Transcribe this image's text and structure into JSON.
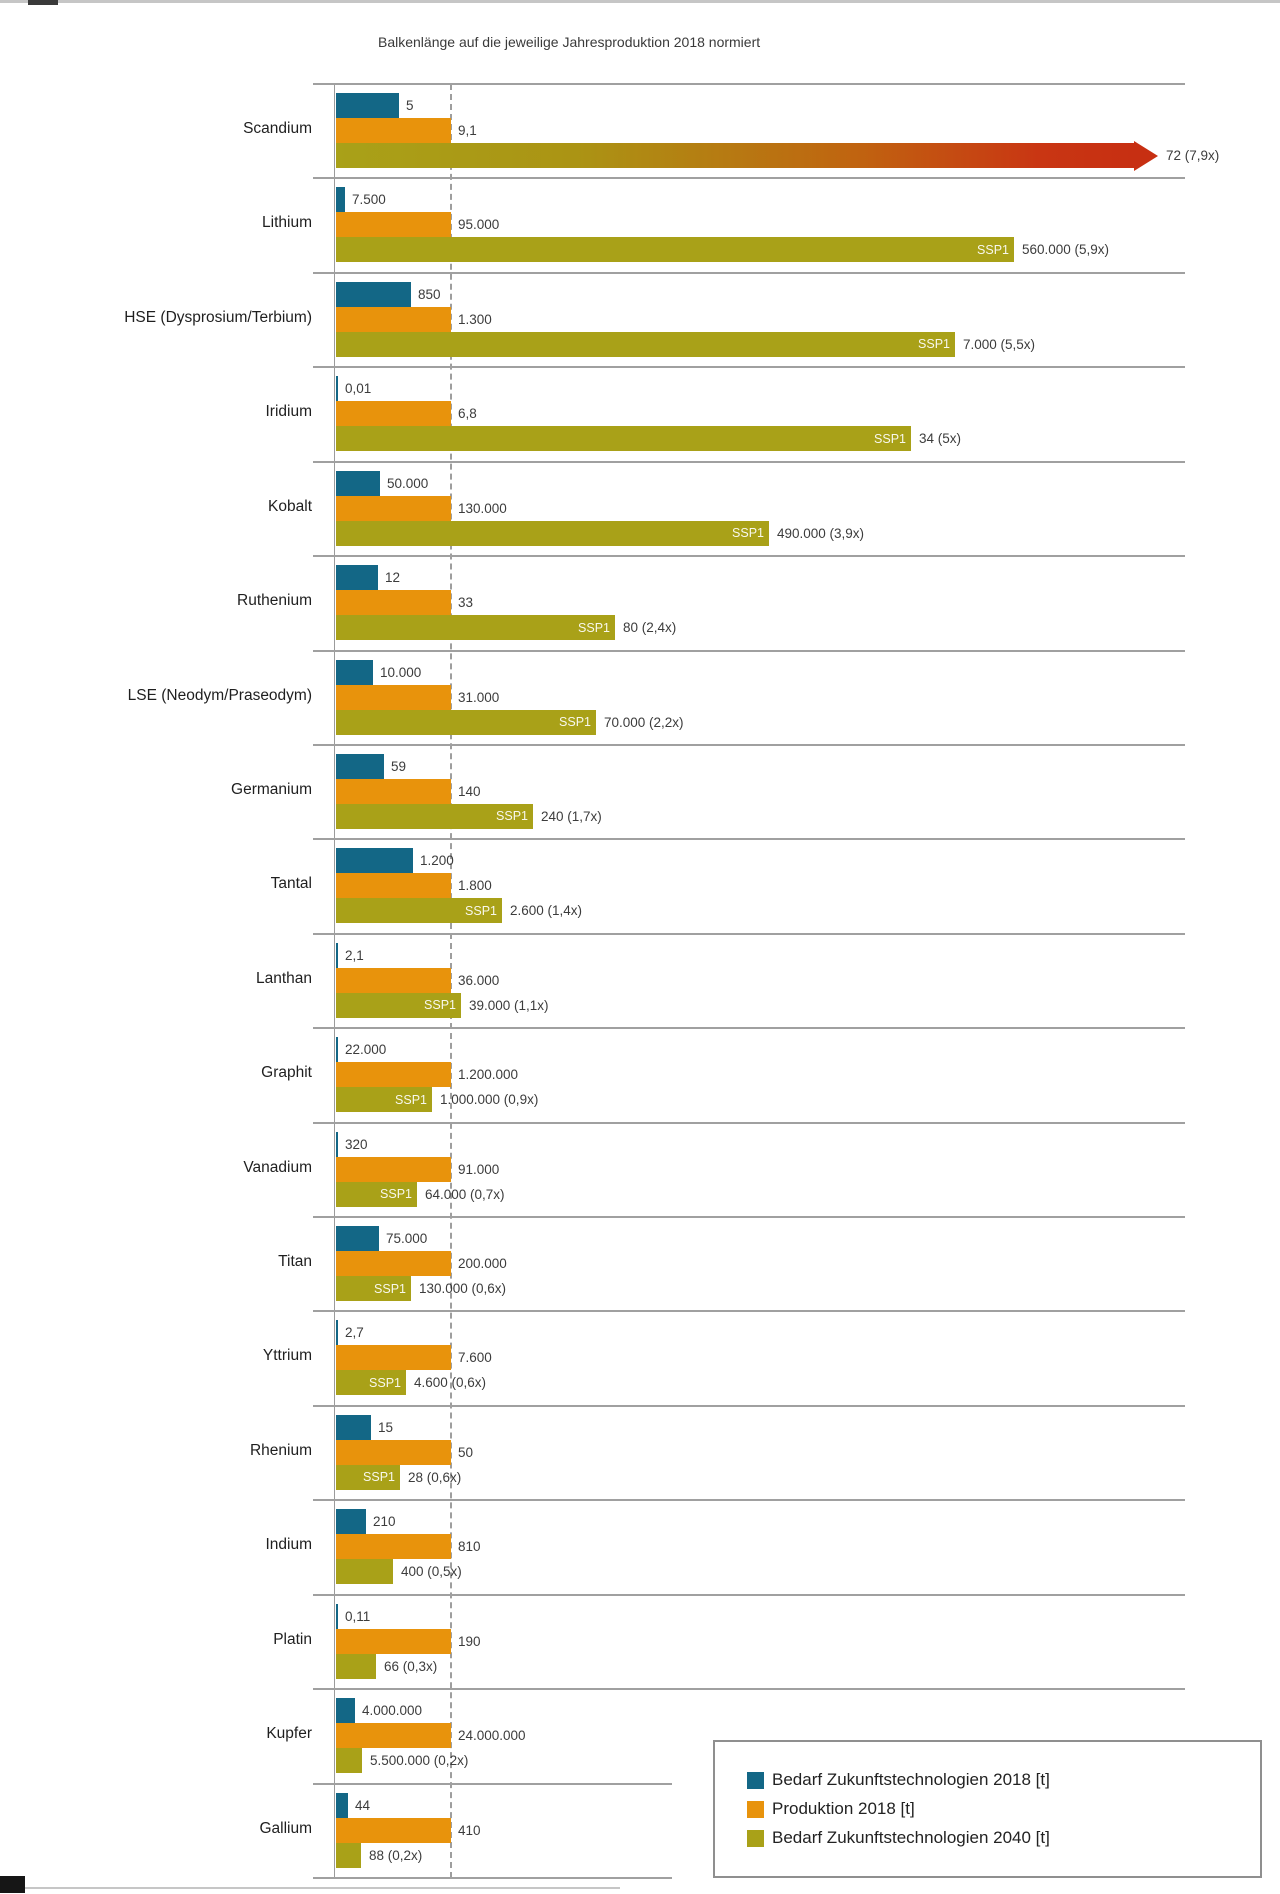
{
  "title": "Balkenlänge auf die jeweilige Jahresproduktion 2018 normiert",
  "legend": {
    "items": [
      {
        "label": "Bedarf Zukunftstechnologien 2018 [t]",
        "color": "#136786"
      },
      {
        "label": "Produktion 2018 [t]",
        "color": "#e8930c"
      },
      {
        "label": "Bedarf Zukunftstechnologien 2040 [t]",
        "color": "#a9a118"
      }
    ]
  },
  "colors": {
    "demand_2018": "#136786",
    "production_2018": "#e8930c",
    "demand_2040": "#a9a118",
    "overflow_red": "#c72f12",
    "grid": "#9b9b9b",
    "text": "#3c3c3c"
  },
  "chart_data": {
    "type": "bar",
    "orientation": "horizontal",
    "title": "Balkenlänge auf die jeweilige Jahresproduktion 2018 normiert",
    "normalized_to": "Produktion 2018 = 1",
    "ssp1_label": "SSP1",
    "series_names": [
      "Bedarf Zukunftstechnologien 2018 [t]",
      "Produktion 2018 [t]",
      "Bedarf Zukunftstechnologien 2040 [t]"
    ],
    "rows": [
      {
        "material": "Scandium",
        "demand_2018": 5,
        "demand_2018_label": "5",
        "production_2018": 9.1,
        "production_2018_label": "9,1",
        "demand_2040": 72,
        "demand_2040_label": "72 (7,9x)",
        "ssp1_tag": false,
        "overflow_arrow": true
      },
      {
        "material": "Lithium",
        "demand_2018": 7500,
        "demand_2018_label": "7.500",
        "production_2018": 95000,
        "production_2018_label": "95.000",
        "demand_2040": 560000,
        "demand_2040_label": "560.000 (5,9x)",
        "ssp1_tag": true,
        "overflow_arrow": false
      },
      {
        "material": "HSE (Dysprosium/Terbium)",
        "demand_2018": 850,
        "demand_2018_label": "850",
        "production_2018": 1300,
        "production_2018_label": "1.300",
        "demand_2040": 7000,
        "demand_2040_label": "7.000 (5,5x)",
        "ssp1_tag": true,
        "overflow_arrow": false
      },
      {
        "material": "Iridium",
        "demand_2018": 0.01,
        "demand_2018_label": "0,01",
        "production_2018": 6.8,
        "production_2018_label": "6,8",
        "demand_2040": 34,
        "demand_2040_label": "34 (5x)",
        "ssp1_tag": true,
        "overflow_arrow": false
      },
      {
        "material": "Kobalt",
        "demand_2018": 50000,
        "demand_2018_label": "50.000",
        "production_2018": 130000,
        "production_2018_label": "130.000",
        "demand_2040": 490000,
        "demand_2040_label": "490.000 (3,9x)",
        "ssp1_tag": true,
        "overflow_arrow": false
      },
      {
        "material": "Ruthenium",
        "demand_2018": 12,
        "demand_2018_label": "12",
        "production_2018": 33,
        "production_2018_label": "33",
        "demand_2040": 80,
        "demand_2040_label": "80 (2,4x)",
        "ssp1_tag": true,
        "overflow_arrow": false
      },
      {
        "material": "LSE (Neodym/Praseodym)",
        "demand_2018": 10000,
        "demand_2018_label": "10.000",
        "production_2018": 31000,
        "production_2018_label": "31.000",
        "demand_2040": 70000,
        "demand_2040_label": "70.000 (2,2x)",
        "ssp1_tag": true,
        "overflow_arrow": false
      },
      {
        "material": "Germanium",
        "demand_2018": 59,
        "demand_2018_label": "59",
        "production_2018": 140,
        "production_2018_label": "140",
        "demand_2040": 240,
        "demand_2040_label": "240 (1,7x)",
        "ssp1_tag": true,
        "overflow_arrow": false
      },
      {
        "material": "Tantal",
        "demand_2018": 1200,
        "demand_2018_label": "1.200",
        "production_2018": 1800,
        "production_2018_label": "1.800",
        "demand_2040": 2600,
        "demand_2040_label": "2.600 (1,4x)",
        "ssp1_tag": true,
        "overflow_arrow": false
      },
      {
        "material": "Lanthan",
        "demand_2018": 2.1,
        "demand_2018_label": "2,1",
        "production_2018": 36000,
        "production_2018_label": "36.000",
        "demand_2040": 39000,
        "demand_2040_label": "39.000 (1,1x)",
        "ssp1_tag": true,
        "overflow_arrow": false
      },
      {
        "material": "Graphit",
        "demand_2018": 22000,
        "demand_2018_label": "22.000",
        "production_2018": 1200000,
        "production_2018_label": "1.200.000",
        "demand_2040": 1000000,
        "demand_2040_label": "1.000.000 (0,9x)",
        "ssp1_tag": true,
        "overflow_arrow": false
      },
      {
        "material": "Vanadium",
        "demand_2018": 320,
        "demand_2018_label": "320",
        "production_2018": 91000,
        "production_2018_label": "91.000",
        "demand_2040": 64000,
        "demand_2040_label": "64.000 (0,7x)",
        "ssp1_tag": true,
        "overflow_arrow": false
      },
      {
        "material": "Titan",
        "demand_2018": 75000,
        "demand_2018_label": "75.000",
        "production_2018": 200000,
        "production_2018_label": "200.000",
        "demand_2040": 130000,
        "demand_2040_label": "130.000 (0,6x)",
        "ssp1_tag": true,
        "overflow_arrow": false
      },
      {
        "material": "Yttrium",
        "demand_2018": 2.7,
        "demand_2018_label": "2,7",
        "production_2018": 7600,
        "production_2018_label": "7.600",
        "demand_2040": 4600,
        "demand_2040_label": "4.600 (0,6x)",
        "ssp1_tag": true,
        "overflow_arrow": false
      },
      {
        "material": "Rhenium",
        "demand_2018": 15,
        "demand_2018_label": "15",
        "production_2018": 50,
        "production_2018_label": "50",
        "demand_2040": 28,
        "demand_2040_label": "28 (0,6x)",
        "ssp1_tag": true,
        "overflow_arrow": false
      },
      {
        "material": "Indium",
        "demand_2018": 210,
        "demand_2018_label": "210",
        "production_2018": 810,
        "production_2018_label": "810",
        "demand_2040": 400,
        "demand_2040_label": "400 (0,5x)",
        "ssp1_tag": false,
        "overflow_arrow": false
      },
      {
        "material": "Platin",
        "demand_2018": 0.11,
        "demand_2018_label": "0,11",
        "production_2018": 190,
        "production_2018_label": "190",
        "demand_2040": 66,
        "demand_2040_label": "66 (0,3x)",
        "ssp1_tag": false,
        "overflow_arrow": false
      },
      {
        "material": "Kupfer",
        "demand_2018": 4000000,
        "demand_2018_label": "4.000.000",
        "production_2018": 24000000,
        "production_2018_label": "24.000.000",
        "demand_2040": 5500000,
        "demand_2040_label": "5.500.000 (0,2x)",
        "ssp1_tag": false,
        "overflow_arrow": false
      },
      {
        "material": "Gallium",
        "demand_2018": 44,
        "demand_2018_label": "44",
        "production_2018": 410,
        "production_2018_label": "410",
        "demand_2040": 88,
        "demand_2040_label": "88 (0,2x)",
        "ssp1_tag": false,
        "overflow_arrow": false
      }
    ]
  }
}
